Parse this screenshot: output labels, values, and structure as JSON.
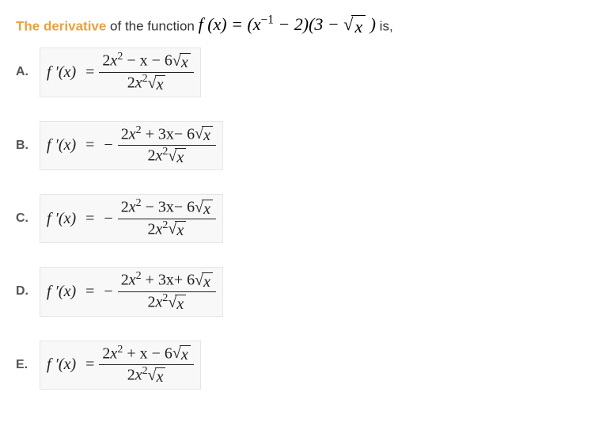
{
  "prompt": {
    "highlight": "The derivative",
    "rest": " of the function ",
    "fn_lhs": "f (x) = ",
    "fn_factor1_pre": "(x",
    "fn_factor1_exp": "−1",
    "fn_factor1_post": " − 2)",
    "fn_factor2_pre": "(3 − ",
    "fn_factor2_sqrt": "x",
    "fn_factor2_post": " )",
    "after": " is,"
  },
  "fprime": "f ′(x)",
  "equals": "=",
  "minus": "−",
  "options": {
    "A": {
      "neg": false,
      "num_a": "2",
      "num_b": "− x − 6",
      "den_a": "2"
    },
    "B": {
      "neg": true,
      "num_a": "2",
      "num_b": "+ 3x− 6",
      "den_a": "2"
    },
    "C": {
      "neg": true,
      "num_a": "2",
      "num_b": "− 3x− 6",
      "den_a": "2"
    },
    "D": {
      "neg": true,
      "num_a": "2",
      "num_b": "+ 3x+ 6",
      "den_a": "2"
    },
    "E": {
      "neg": false,
      "num_a": "2",
      "num_b": "+ x − 6",
      "den_a": "2"
    }
  },
  "labels": {
    "A": "A.",
    "B": "B.",
    "C": "C.",
    "D": "D.",
    "E": "E."
  },
  "x": "x",
  "sq": "2"
}
